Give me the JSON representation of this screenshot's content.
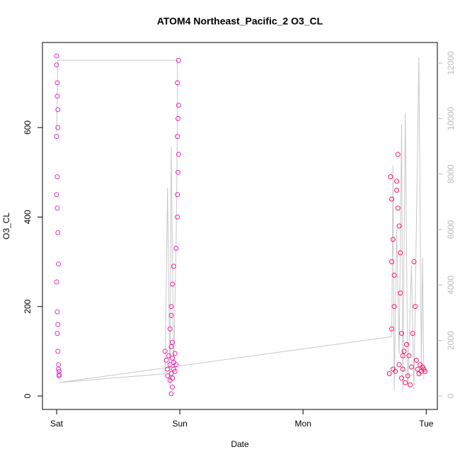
{
  "chart_data": {
    "type": "scatter",
    "title": "ATOM4 Northeast_Pacific_2 O3_CL",
    "x_label": "Date",
    "y_label": "O3_CL",
    "xlim": [
      -0.115,
      3.09
    ],
    "xticks": [
      {
        "value": 0,
        "label": "Sat"
      },
      {
        "value": 1,
        "label": "Sun"
      },
      {
        "value": 2,
        "label": "Mon"
      },
      {
        "value": 3,
        "label": "Tue"
      }
    ],
    "ylim": [
      -30,
      790
    ],
    "yticks": [
      0,
      200,
      400,
      600
    ],
    "y2lim": [
      -485,
      12740
    ],
    "y2ticks": [
      0,
      2000,
      4000,
      6000,
      8000,
      10000,
      12000
    ],
    "series": [
      {
        "color": "#dd33cc",
        "x": [
          0.0,
          0.0,
          0.005,
          0.005,
          0.01,
          0.01,
          0.0,
          0.005,
          0.0,
          0.005,
          0.01,
          0.015,
          0.0,
          0.005,
          0.01,
          0.005,
          0.01,
          0.015,
          0.015,
          0.02,
          0.02,
          0.02
        ],
        "values": [
          760,
          740,
          700,
          670,
          640,
          600,
          580,
          490,
          450,
          420,
          365,
          295,
          255,
          188,
          160,
          140,
          100,
          70,
          60,
          55,
          48,
          45
        ]
      },
      {
        "color": "#ee22aa",
        "x": [
          0.88,
          0.89,
          0.9,
          0.9,
          0.91,
          0.92,
          0.92,
          0.93,
          0.93,
          0.94,
          0.94,
          0.95,
          0.95,
          0.96,
          0.96,
          0.97,
          0.93,
          0.94,
          0.92,
          0.93,
          0.94,
          0.95,
          0.93,
          0.94,
          0.97,
          0.98,
          0.98,
          0.985,
          0.99,
          0.98,
          0.985,
          0.99,
          0.98,
          0.99
        ],
        "values": [
          100,
          80,
          60,
          45,
          90,
          70,
          35,
          110,
          50,
          85,
          40,
          75,
          60,
          95,
          55,
          70,
          5,
          20,
          150,
          200,
          250,
          290,
          180,
          120,
          330,
          400,
          450,
          500,
          540,
          580,
          620,
          650,
          700,
          750
        ]
      },
      {
        "color": "#ff1166",
        "x": [
          2.7,
          2.71,
          2.72,
          2.72,
          2.73,
          2.74,
          2.74,
          2.75,
          2.76,
          2.77,
          2.77,
          2.78,
          2.78,
          2.79,
          2.8,
          2.8,
          2.81,
          2.82,
          2.83,
          2.84,
          2.85,
          2.86,
          2.87,
          2.88,
          2.89,
          2.9,
          2.91,
          2.92,
          2.93,
          2.94,
          2.95,
          2.96,
          2.97,
          2.98,
          2.99,
          2.72,
          2.73,
          2.76,
          2.79,
          2.81
        ],
        "values": [
          50,
          490,
          440,
          300,
          60,
          270,
          200,
          55,
          480,
          540,
          420,
          380,
          70,
          230,
          40,
          140,
          60,
          100,
          30,
          115,
          45,
          90,
          25,
          65,
          140,
          300,
          200,
          80,
          60,
          50,
          70,
          55,
          65,
          60,
          55,
          150,
          350,
          460,
          320,
          90
        ]
      }
    ],
    "line": {
      "color": "#c8c8c8",
      "axis": "y2",
      "x": [
        0.0,
        0.01,
        0.98,
        0.98,
        0.97,
        0.95,
        0.93,
        0.92,
        0.9,
        0.88,
        0.02,
        2.72,
        2.73,
        2.74,
        2.76,
        2.78,
        2.8,
        2.81,
        2.83,
        2.85,
        2.88,
        2.9,
        2.94,
        2.96,
        2.97,
        2.98
      ],
      "values": [
        9500,
        12100,
        12100,
        9800,
        5500,
        1000,
        9000,
        300,
        7500,
        800,
        485,
        2140,
        8300,
        200,
        6000,
        1500,
        9800,
        200,
        10200,
        400,
        4700,
        200,
        12200,
        1000,
        5000,
        600
      ]
    }
  }
}
